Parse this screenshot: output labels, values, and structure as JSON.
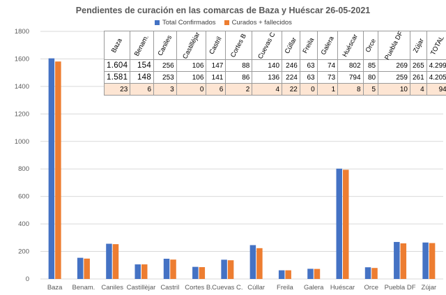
{
  "chart_data": {
    "type": "bar",
    "title": "Pendientes de curación en las comarcas de Baza y Huéscar 26-05-2021",
    "categories": [
      "Baza",
      "Benam.",
      "Caniles",
      "Castillèjar",
      "Castril",
      "Cortes B.",
      "Cuevas C.",
      "Cúllar",
      "Freila",
      "Galera",
      "Huéscar",
      "Orce",
      "Puebla DF",
      "Zújar"
    ],
    "series": [
      {
        "name": "Total Confirmados",
        "color": "#4472c4",
        "values": [
          1604,
          154,
          256,
          106,
          147,
          88,
          140,
          246,
          63,
          74,
          802,
          85,
          269,
          265
        ]
      },
      {
        "name": "Curados + fallecidos",
        "color": "#ed7d31",
        "values": [
          1581,
          148,
          253,
          106,
          141,
          86,
          136,
          224,
          63,
          73,
          794,
          80,
          259,
          261
        ]
      }
    ],
    "ylim": [
      0,
      1800
    ],
    "yticks": [
      "0",
      "200",
      "400",
      "600",
      "800",
      "1000",
      "1200",
      "1400",
      "1600",
      "1800"
    ],
    "grid": true,
    "legend": "top-center"
  },
  "table": {
    "headers": [
      "Baza",
      "Benam.",
      "Caniles",
      "Castillèjar",
      "Castril",
      "Cortes B",
      "Cuevas C",
      "Cúllar",
      "Freila",
      "Galera",
      "Huéscar",
      "Orce",
      "Puebla DF",
      "Zújar",
      "TOTAL"
    ],
    "rows": [
      [
        "1.604",
        "154",
        "256",
        "106",
        "147",
        "88",
        "140",
        "246",
        "63",
        "74",
        "802",
        "85",
        "269",
        "265",
        "4.299"
      ],
      [
        "1.581",
        "148",
        "253",
        "106",
        "141",
        "86",
        "136",
        "224",
        "63",
        "73",
        "794",
        "80",
        "259",
        "261",
        "4.205"
      ],
      [
        "23",
        "6",
        "3",
        "0",
        "6",
        "2",
        "4",
        "22",
        "0",
        "1",
        "8",
        "5",
        "10",
        "4",
        "94"
      ]
    ]
  }
}
